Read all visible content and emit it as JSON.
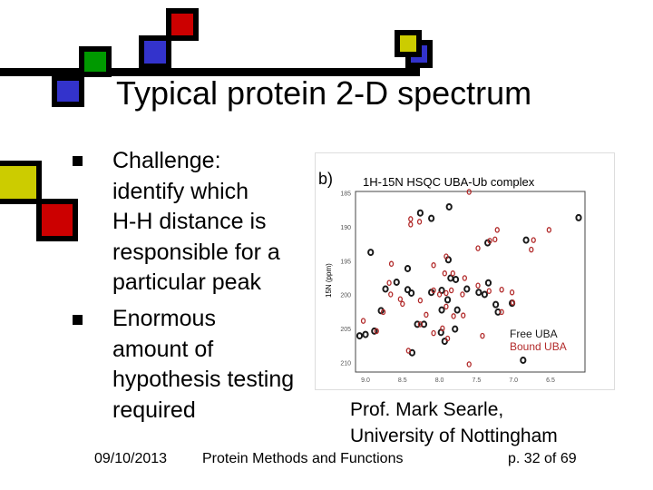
{
  "slide": {
    "title": "Typical protein 2-D spectrum",
    "bullets": [
      {
        "lines": [
          "Challenge:",
          "identify which",
          "H-H distance is",
          "responsible for a",
          "particular peak"
        ]
      },
      {
        "lines": [
          "Enormous",
          "amount of",
          "hypothesis testing",
          "required"
        ]
      }
    ],
    "credit": [
      "Prof. Mark Searle,",
      "University of Nottingham"
    ],
    "footer": {
      "date": "09/10/2013",
      "center": "Protein Methods and Functions",
      "page": "p. 32 of 69"
    },
    "colors": {
      "blue": "#3333cc",
      "green": "#009900",
      "red": "#cc0000",
      "yellow": "#cccc00"
    }
  },
  "chart_data": {
    "type": "scatter",
    "panel_label": "b)",
    "title": "1H-15N HSQC UBA-Ub complex",
    "xlabel": "",
    "ylabel": "15N (ppm)",
    "xlim": [
      9.1,
      6.1
    ],
    "ylim": [
      184.5,
      211
    ],
    "x_reversed": true,
    "y_reversed": true,
    "xticks": [
      "9.0",
      "8.5",
      "8.0",
      "7.5",
      "7.0",
      "6.5"
    ],
    "yticks": [
      "185",
      "190",
      "195",
      "200",
      "205",
      "210"
    ],
    "legend_placement": "bottom-right",
    "series": [
      {
        "name": "Free UBA",
        "color": "#1a1a1a",
        "points": [
          [
            8.26,
            187.9
          ],
          [
            8.11,
            188.7
          ],
          [
            7.87,
            187.0
          ],
          [
            6.12,
            188.6
          ],
          [
            6.83,
            191.9
          ],
          [
            7.35,
            192.3
          ],
          [
            8.93,
            193.7
          ],
          [
            7.88,
            194.8
          ],
          [
            8.43,
            196.1
          ],
          [
            8.58,
            198.1
          ],
          [
            8.73,
            199.1
          ],
          [
            8.43,
            199.2
          ],
          [
            8.38,
            199.7
          ],
          [
            8.11,
            199.6
          ],
          [
            7.85,
            197.5
          ],
          [
            7.78,
            197.7
          ],
          [
            7.89,
            200.7
          ],
          [
            7.97,
            202.2
          ],
          [
            7.76,
            202.2
          ],
          [
            7.63,
            199.1
          ],
          [
            7.47,
            199.6
          ],
          [
            7.39,
            199.9
          ],
          [
            7.34,
            198.2
          ],
          [
            7.24,
            201.4
          ],
          [
            7.21,
            202.5
          ],
          [
            7.02,
            201.2
          ],
          [
            8.79,
            202.3
          ],
          [
            8.3,
            204.3
          ],
          [
            8.21,
            204.3
          ],
          [
            9.08,
            206.0
          ],
          [
            9.0,
            205.8
          ],
          [
            8.88,
            205.3
          ],
          [
            7.98,
            205.5
          ],
          [
            7.93,
            206.8
          ],
          [
            7.79,
            205.0
          ],
          [
            8.37,
            208.5
          ],
          [
            6.87,
            209.6
          ],
          [
            7.97,
            199.3
          ]
        ]
      },
      {
        "name": "Bound UBA",
        "color": "#b22a2a",
        "points": [
          [
            8.39,
            188.8
          ],
          [
            8.27,
            189.2
          ],
          [
            8.39,
            189.6
          ],
          [
            7.22,
            190.4
          ],
          [
            6.52,
            190.4
          ],
          [
            7.32,
            192.0
          ],
          [
            7.25,
            191.8
          ],
          [
            6.73,
            191.9
          ],
          [
            6.76,
            193.3
          ],
          [
            7.48,
            193.1
          ],
          [
            7.91,
            194.3
          ],
          [
            8.08,
            195.6
          ],
          [
            8.65,
            195.4
          ],
          [
            7.93,
            196.8
          ],
          [
            7.82,
            196.8
          ],
          [
            7.66,
            197.5
          ],
          [
            8.68,
            198.2
          ],
          [
            8.66,
            199.9
          ],
          [
            8.5,
            201.3
          ],
          [
            8.53,
            200.6
          ],
          [
            8.26,
            200.8
          ],
          [
            8.76,
            202.5
          ],
          [
            8.18,
            202.9
          ],
          [
            8.08,
            199.3
          ],
          [
            8.0,
            199.9
          ],
          [
            7.91,
            199.7
          ],
          [
            7.84,
            199.3
          ],
          [
            7.69,
            199.9
          ],
          [
            7.91,
            201.7
          ],
          [
            7.81,
            203.1
          ],
          [
            7.68,
            203.0
          ],
          [
            7.48,
            198.6
          ],
          [
            7.33,
            199.4
          ],
          [
            7.16,
            199.2
          ],
          [
            7.02,
            199.6
          ],
          [
            7.01,
            201.1
          ],
          [
            7.16,
            202.5
          ],
          [
            9.03,
            203.8
          ],
          [
            8.85,
            205.3
          ],
          [
            8.26,
            204.3
          ],
          [
            8.08,
            205.6
          ],
          [
            7.96,
            204.9
          ],
          [
            7.89,
            206.4
          ],
          [
            8.42,
            208.2
          ],
          [
            7.6,
            210.2
          ],
          [
            7.6,
            184.8
          ],
          [
            7.42,
            206.0
          ]
        ]
      }
    ]
  }
}
